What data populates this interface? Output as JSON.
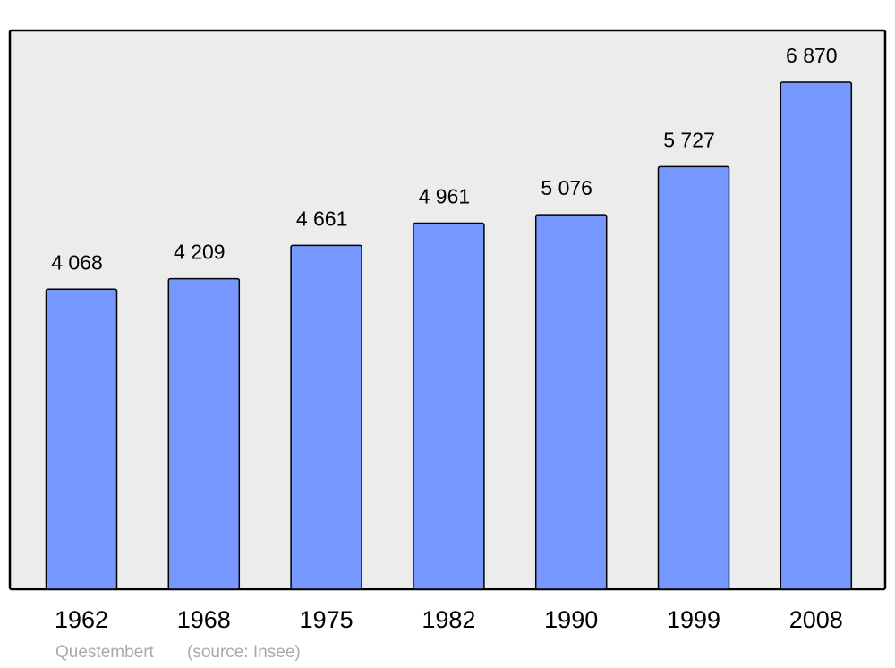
{
  "chart_data": {
    "type": "bar",
    "categories": [
      "1962",
      "1968",
      "1975",
      "1982",
      "1990",
      "1999",
      "2008"
    ],
    "values": [
      4068,
      4209,
      4661,
      4961,
      5076,
      5727,
      6870
    ],
    "value_labels": [
      "4 068",
      "4 209",
      "4 661",
      "4 961",
      "5 076",
      "5 727",
      "6 870"
    ],
    "color": "#7799ff",
    "title": "Questembert",
    "source": "(source: Insee)"
  }
}
